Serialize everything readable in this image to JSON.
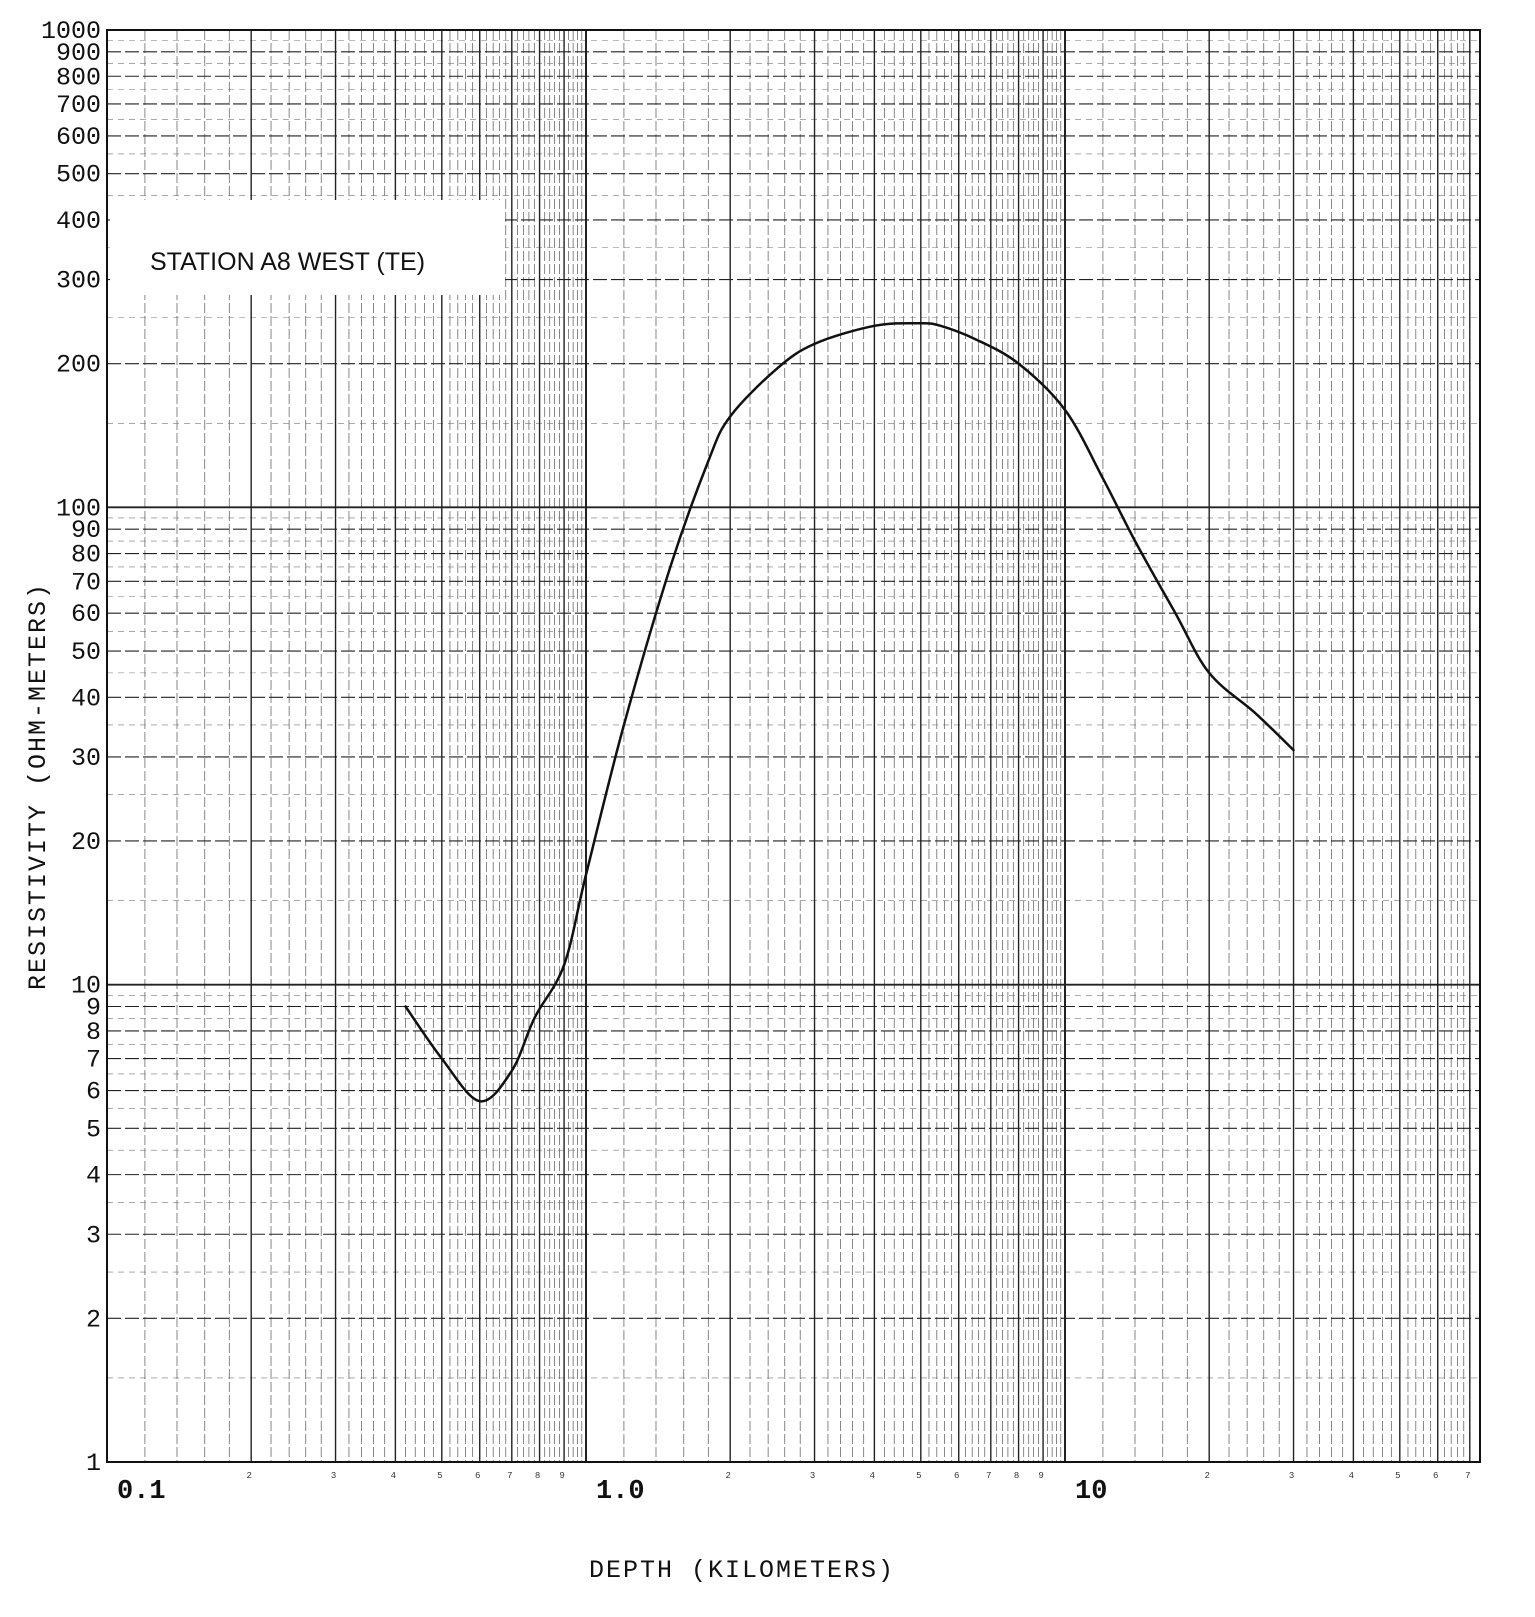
{
  "chart_data": {
    "type": "line",
    "title": "STATION A8 WEST (TE)",
    "xlabel": "DEPTH (KILOMETERS)",
    "ylabel": "RESISTIVITY (OHM-METERS)",
    "x_scale": "log",
    "y_scale": "log",
    "xlim": [
      0.1,
      70
    ],
    "ylim": [
      1,
      1000
    ],
    "grid": true,
    "y_tick_labels": [
      "1",
      "2",
      "3",
      "4",
      "5",
      "6",
      "7",
      "8",
      "9",
      "10",
      "20",
      "30",
      "40",
      "50",
      "60",
      "70",
      "80",
      "90",
      "100",
      "200",
      "300",
      "400",
      "500",
      "600",
      "700",
      "800",
      "900",
      "1000"
    ],
    "x_tick_labels": [
      "0.1",
      "1.0",
      "10"
    ],
    "series": [
      {
        "x": [
          0.42,
          0.5,
          0.6,
          0.7,
          0.78,
          0.9,
          1.0,
          1.2,
          1.5,
          1.8,
          2.0,
          2.5,
          3.0,
          4.0,
          5.0,
          5.5,
          6.5,
          8.0,
          10.0,
          12.0,
          14.0,
          17.0,
          20.0,
          25.0,
          30.0
        ],
        "y": [
          9,
          7,
          5.7,
          6.6,
          8.5,
          11,
          17,
          35,
          75,
          125,
          155,
          195,
          220,
          240,
          243,
          240,
          225,
          200,
          160,
          115,
          85,
          60,
          45,
          37,
          31
        ]
      }
    ]
  }
}
